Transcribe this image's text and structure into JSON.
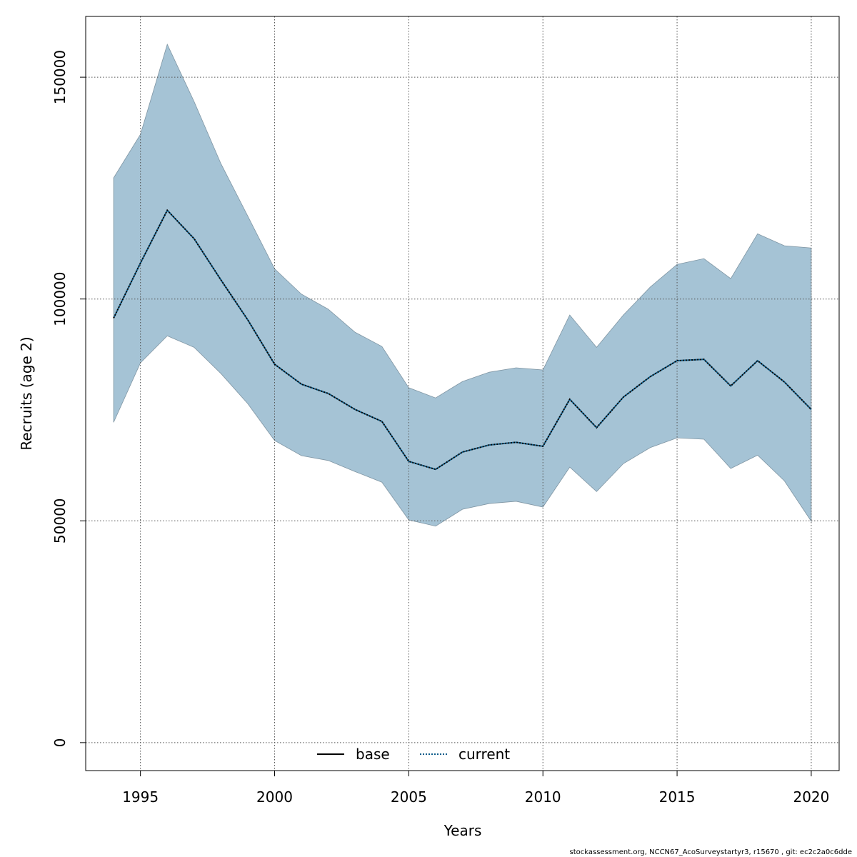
{
  "chart_data": {
    "type": "line",
    "xlabel": "Years",
    "ylabel": "Recruits (age 2)",
    "x": [
      1994,
      1995,
      1996,
      1997,
      1998,
      1999,
      2000,
      2001,
      2002,
      2003,
      2004,
      2005,
      2006,
      2007,
      2008,
      2009,
      2010,
      2011,
      2012,
      2013,
      2014,
      2015,
      2016,
      2017,
      2018,
      2019,
      2020
    ],
    "band": {
      "color": "#a5c3d5",
      "upper": [
        127300,
        137100,
        157400,
        144500,
        130500,
        118700,
        106800,
        101100,
        97700,
        92500,
        89300,
        80000,
        77700,
        81400,
        83500,
        84500,
        84000,
        96400,
        89100,
        96400,
        102700,
        107800,
        109100,
        104600,
        114700,
        112000,
        111500
      ],
      "lower": [
        72200,
        85600,
        91700,
        89100,
        83200,
        76400,
        68100,
        64700,
        63600,
        61100,
        58700,
        50200,
        48800,
        52600,
        53900,
        54400,
        53100,
        62100,
        56600,
        62900,
        66500,
        68700,
        68400,
        61800,
        64800,
        59000,
        49900
      ]
    },
    "series": [
      {
        "name": "current",
        "color": "#0b5c8a",
        "values": [
          95700,
          108100,
          120000,
          113600,
          104300,
          95300,
          85300,
          80800,
          78700,
          75100,
          72400,
          63400,
          61600,
          65500,
          67100,
          67700,
          66800,
          77400,
          71000,
          77900,
          82500,
          86100,
          86400,
          80400,
          86100,
          81300,
          75100
        ]
      }
    ],
    "legend": [
      {
        "name": "base",
        "color": "#000000",
        "dash": "solid"
      },
      {
        "name": "current",
        "color": "#0b5c8a",
        "dash": "dotted"
      }
    ],
    "legend_position": "bottom",
    "xlim": [
      1992.96,
      2021.04
    ],
    "xticks": [
      1995,
      2000,
      2005,
      2010,
      2015,
      2020
    ],
    "ylim": [
      -6300,
      163700
    ],
    "yticks": [
      0,
      50000,
      100000,
      150000
    ],
    "grid": true,
    "footer": "stockassessment.org, NCCN67_AcoSurveystartyr3, r15670 , git: ec2c2a0c6dde"
  }
}
